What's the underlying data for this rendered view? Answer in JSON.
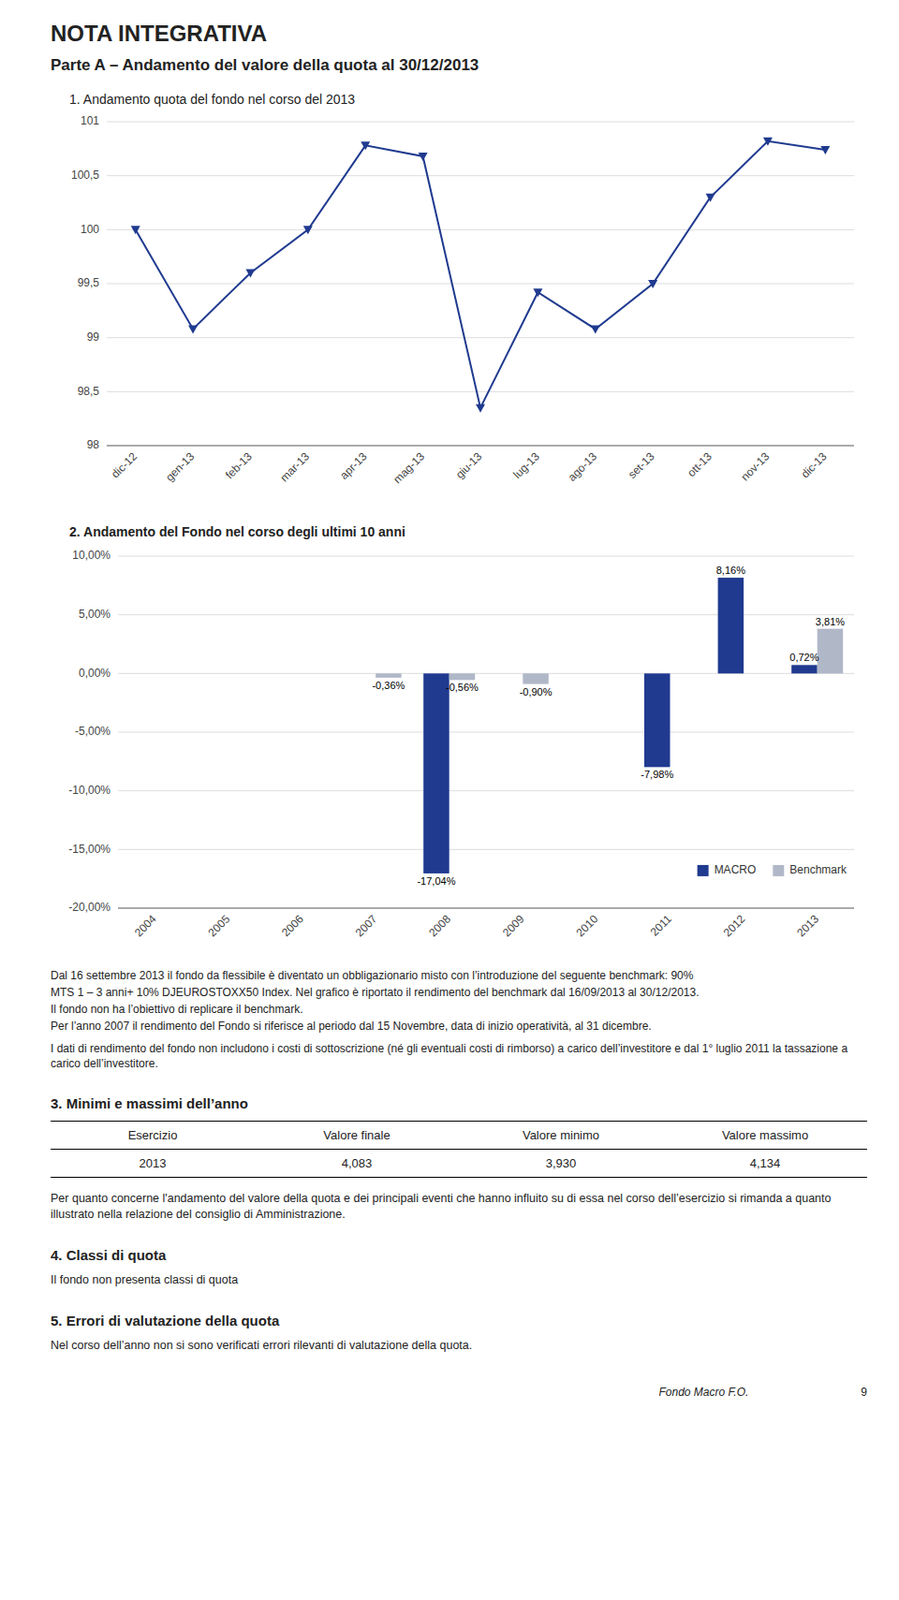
{
  "title": "NOTA INTEGRATIVA",
  "subtitle": "Parte A – Andamento del valore della quota al 30/12/2013",
  "chart_data": [
    {
      "type": "line",
      "title": "1. Andamento quota del fondo nel corso del 2013",
      "categories": [
        "dic-12",
        "gen-13",
        "feb-13",
        "mar-13",
        "apr-13",
        "mag-13",
        "giu-13",
        "lug-13",
        "ago-13",
        "set-13",
        "ott-13",
        "nov-13",
        "dic-13"
      ],
      "values": [
        100.0,
        99.08,
        99.6,
        100.0,
        100.78,
        100.68,
        98.35,
        99.42,
        99.08,
        99.5,
        100.3,
        100.82,
        100.74
      ],
      "color": "#1F3A8F",
      "marker": "triangle-down",
      "line_style": "solid",
      "ylim": [
        98,
        101
      ],
      "yticks": [
        98,
        {
          "value": 98.5,
          "label": "98,5"
        },
        99,
        {
          "value": 99.5,
          "label": "99,5"
        },
        100,
        {
          "value": 100.5,
          "label": "100,5"
        },
        101
      ],
      "grid": true
    },
    {
      "type": "bar",
      "title": "2. Andamento del Fondo nel corso degli ultimi 10 anni",
      "categories": [
        "2004",
        "2005",
        "2006",
        "2007",
        "2008",
        "2009",
        "2010",
        "2011",
        "2012",
        "2013"
      ],
      "series": [
        {
          "name": "MACRO",
          "color": "#1F3A8F",
          "values": [
            0.0,
            0.0,
            0.0,
            0.0,
            -17.04,
            0.0,
            0.0,
            -7.98,
            8.16,
            0.72
          ],
          "value_labels": [
            null,
            null,
            null,
            null,
            "-17,04%",
            null,
            null,
            "-7,98%",
            "8,16%",
            "0,72%"
          ]
        },
        {
          "name": "Benchmark",
          "color": "#B0B8C8",
          "values": [
            0.0,
            0.0,
            0.0,
            -0.36,
            -0.56,
            -0.9,
            0.0,
            0.0,
            0.0,
            3.81
          ],
          "value_labels": [
            null,
            null,
            null,
            "-0,36%",
            "-0,56%",
            "-0,90%",
            null,
            null,
            null,
            "3,81%"
          ]
        }
      ],
      "ylim": [
        -20,
        10
      ],
      "yticks": [
        {
          "value": -20,
          "label": "-20,00%"
        },
        {
          "value": -15,
          "label": "-15,00%"
        },
        {
          "value": -10,
          "label": "-10,00%"
        },
        {
          "value": -5,
          "label": "-5,00%"
        },
        {
          "value": 0,
          "label": "0,00%"
        },
        {
          "value": 5,
          "label": "5,00%"
        },
        {
          "value": 10,
          "label": "10,00%"
        }
      ],
      "grid": true,
      "legend": "lower right",
      "data_labels": true
    }
  ],
  "notes": [
    "Dal 16 settembre 2013 il fondo da flessibile è diventato un obbligazionario misto con l’introduzione del seguente benchmark: 90%",
    "MTS 1 – 3 anni+ 10% DJEUROSTOXX50 Index. Nel grafico è riportato il rendimento del benchmark dal 16/09/2013 al 30/12/2013.",
    "Il fondo non ha l’obiettivo di replicare il benchmark.",
    "Per l’anno 2007 il rendimento del Fondo si riferisce al periodo dal 15 Novembre, data di inizio operatività, al 31 dicembre.",
    "I dati di rendimento del fondo non includono i costi di sottoscrizione (né gli eventuali costi di rimborso) a carico dell’investitore e dal 1° luglio 2011 la tassazione a carico dell’investitore."
  ],
  "section3": {
    "title": "3. Minimi e massimi dell’anno",
    "table": {
      "headers": [
        "Esercizio",
        "Valore finale",
        "Valore minimo",
        "Valore massimo"
      ],
      "rows": [
        [
          "2013",
          "4,083",
          "3,930",
          "4,134"
        ]
      ]
    },
    "note": "Per quanto concerne l'andamento del valore della quota e dei principali eventi che hanno influito su di essa nel corso dell’esercizio si rimanda a quanto illustrato nella relazione del consiglio di Amministrazione."
  },
  "section4": {
    "title": "4. Classi di quota",
    "text": "Il fondo non presenta classi di quota"
  },
  "section5": {
    "title": "5. Errori di valutazione della quota",
    "text": "Nel corso dell’anno non si sono verificati errori rilevanti di valutazione della quota."
  },
  "footer": {
    "text": "Fondo Macro F.O.",
    "page": "9"
  }
}
